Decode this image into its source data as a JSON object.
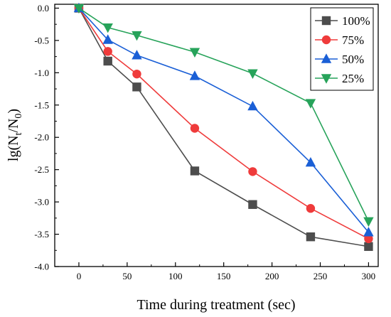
{
  "chart_data": {
    "type": "line",
    "title": "",
    "xlabel": "Time during treatment (sec)",
    "ylabel_parts": {
      "base": "lg(N",
      "sub1": "t",
      "mid": "/N",
      "sub2": "0",
      "end": ")"
    },
    "x": [
      0,
      30,
      60,
      120,
      180,
      240,
      300
    ],
    "xlim": [
      -25,
      310
    ],
    "ylim": [
      -4.0,
      0.06
    ],
    "xticks": [
      0,
      50,
      100,
      150,
      200,
      250,
      300
    ],
    "yticks": [
      0.0,
      -0.5,
      -1.0,
      -1.5,
      -2.0,
      -2.5,
      -3.0,
      -3.5,
      -4.0
    ],
    "grid": false,
    "legend_position": "top-right",
    "series": [
      {
        "name": "100%",
        "color": "#4d4d4d",
        "marker": "square",
        "values": [
          0.0,
          -0.82,
          -1.22,
          -2.52,
          -3.04,
          -3.54,
          -3.69
        ]
      },
      {
        "name": "75%",
        "color": "#ef3b3b",
        "marker": "circle",
        "values": [
          0.0,
          -0.67,
          -1.02,
          -1.86,
          -2.53,
          -3.1,
          -3.57
        ]
      },
      {
        "name": "50%",
        "color": "#1a5fd6",
        "marker": "triangle-up",
        "values": [
          0.0,
          -0.49,
          -0.73,
          -1.05,
          -1.52,
          -2.39,
          -3.47
        ]
      },
      {
        "name": "25%",
        "color": "#27a35a",
        "marker": "triangle-down",
        "values": [
          0.0,
          -0.3,
          -0.42,
          -0.68,
          -1.01,
          -1.47,
          -3.3
        ]
      }
    ]
  }
}
